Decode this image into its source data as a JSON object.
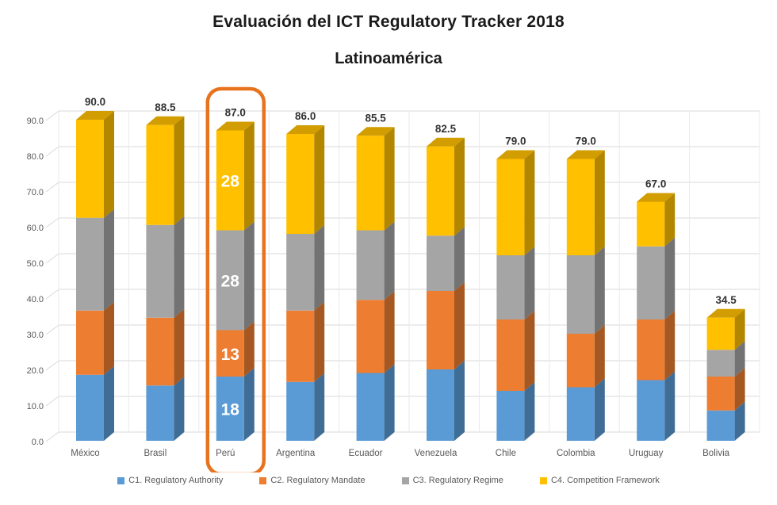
{
  "chart_data": {
    "type": "bar",
    "stacked": true,
    "effect": "3d",
    "title": "Evaluación del ICT Regulatory Tracker 2018",
    "subtitle": "Latinoamérica",
    "categories": [
      "México",
      "Brasil",
      "Perú",
      "Argentina",
      "Ecuador",
      "Venezuela",
      "Chile",
      "Colombia",
      "Uruguay",
      "Bolivia"
    ],
    "series": [
      {
        "key": "c1",
        "name": "C1. Regulatory Authority",
        "color": "#5B9BD5",
        "values": [
          18.5,
          15.5,
          18.0,
          16.5,
          19.0,
          20.0,
          14.0,
          15.0,
          17.0,
          8.5
        ]
      },
      {
        "key": "c2",
        "name": "C2. Regulatory Mandate",
        "color": "#ED7D31",
        "values": [
          18.0,
          19.0,
          13.0,
          20.0,
          20.5,
          22.0,
          20.0,
          15.0,
          17.0,
          9.5
        ]
      },
      {
        "key": "c3",
        "name": "C3. Regulatory Regime",
        "color": "#A5A5A5",
        "values": [
          26.0,
          26.0,
          28.0,
          21.5,
          19.5,
          15.5,
          18.0,
          22.0,
          20.5,
          7.5
        ]
      },
      {
        "key": "c4",
        "name": "C4. Competition Framework",
        "color": "#FFC000",
        "values": [
          27.5,
          28.0,
          28.0,
          28.0,
          26.5,
          25.0,
          27.0,
          27.0,
          12.5,
          9.0
        ]
      }
    ],
    "totals": [
      90.0,
      88.5,
      87.0,
      86.0,
      85.5,
      82.5,
      79.0,
      79.0,
      67.0,
      34.5
    ],
    "total_labels": [
      "90.0",
      "88.5",
      "87.0",
      "86.0",
      "85.5",
      "82.5",
      "79.0",
      "79.0",
      "67.0",
      "34.5"
    ],
    "y_axis": {
      "min": 0,
      "max": 90,
      "step": 10,
      "tick_labels": [
        "0.0",
        "10.0",
        "20.0",
        "30.0",
        "40.0",
        "50.0",
        "60.0",
        "70.0",
        "80.0",
        "90.0"
      ]
    },
    "legend_position": "bottom",
    "highlight": {
      "category": "Perú",
      "segment_labels": [
        "18",
        "13",
        "28",
        "28"
      ],
      "color": "#E8731F"
    }
  },
  "colors": {
    "background": "#FFFFFF",
    "gridline": "#D9D9D9",
    "separator": "#E9E9E9",
    "axis_text": "#595959",
    "category_text": "#595959",
    "total_text": "#333333",
    "segment_label_text": "#FFFFFF",
    "legend_text": "#595959"
  }
}
